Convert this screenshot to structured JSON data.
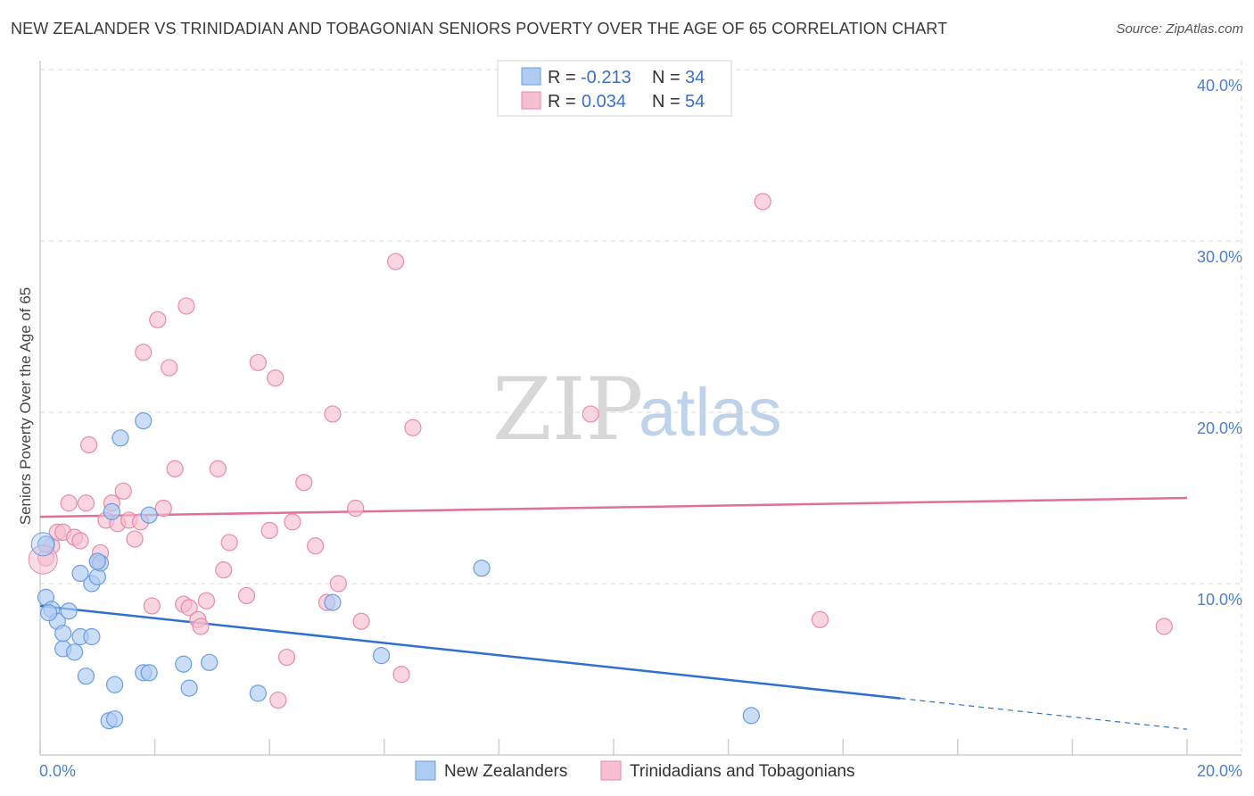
{
  "title": "NEW ZEALANDER VS TRINIDADIAN AND TOBAGONIAN SENIORS POVERTY OVER THE AGE OF 65 CORRELATION CHART",
  "source": "Source: ZipAtlas.com",
  "watermark": {
    "zip": "ZIP",
    "atlas": "atlas"
  },
  "colors": {
    "blue_fill": "#aecbf2",
    "blue_stroke": "#6a9de0",
    "blue_line": "#2f6fd1",
    "pink_fill": "#f6bfd0",
    "pink_stroke": "#e98aa9",
    "pink_line": "#e0709a",
    "grid": "#d8d8d8",
    "tick_text": "#4a7fd0"
  },
  "legend": {
    "rows": [
      {
        "r_label": "R =",
        "r_value": "-0.213",
        "n_label": "N =",
        "n_value": "34"
      },
      {
        "r_label": "R =",
        "r_value": "0.034",
        "n_label": "N =",
        "n_value": "54"
      }
    ]
  },
  "chart_data": {
    "type": "scatter",
    "title": "NEW ZEALANDER VS TRINIDADIAN AND TOBAGONIAN SENIORS POVERTY OVER THE AGE OF 65 CORRELATION CHART",
    "xlabel": "",
    "ylabel": "Seniors Poverty Over the Age of 65",
    "xlim": [
      0,
      20
    ],
    "ylim": [
      0,
      40
    ],
    "x_tick_labels": [
      {
        "v": 0,
        "label": "0.0%"
      },
      {
        "v": 20,
        "label": "20.0%"
      }
    ],
    "y_tick_labels": [
      {
        "v": 10,
        "label": "10.0%"
      },
      {
        "v": 20,
        "label": "20.0%"
      },
      {
        "v": 30,
        "label": "30.0%"
      },
      {
        "v": 40,
        "label": "40.0%"
      }
    ],
    "series": [
      {
        "name": "New Zealanders",
        "color": "blue",
        "points": [
          [
            0.1,
            12.3
          ],
          [
            0.1,
            9.2
          ],
          [
            0.2,
            8.5
          ],
          [
            0.3,
            7.8
          ],
          [
            0.4,
            6.2
          ],
          [
            0.5,
            8.4
          ],
          [
            0.4,
            7.1
          ],
          [
            0.6,
            6.0
          ],
          [
            0.7,
            6.9
          ],
          [
            0.8,
            4.6
          ],
          [
            0.9,
            10.0
          ],
          [
            0.7,
            10.6
          ],
          [
            0.9,
            6.9
          ],
          [
            1.0,
            10.4
          ],
          [
            1.05,
            11.2
          ],
          [
            1.25,
            14.2
          ],
          [
            1.3,
            4.1
          ],
          [
            1.2,
            2.0
          ],
          [
            1.3,
            2.1
          ],
          [
            1.4,
            18.5
          ],
          [
            1.8,
            4.8
          ],
          [
            1.9,
            4.8
          ],
          [
            1.8,
            19.5
          ],
          [
            1.9,
            14.0
          ],
          [
            2.5,
            5.3
          ],
          [
            2.6,
            3.9
          ],
          [
            2.95,
            5.4
          ],
          [
            3.8,
            3.6
          ],
          [
            5.1,
            8.9
          ],
          [
            5.95,
            5.8
          ],
          [
            7.7,
            10.9
          ],
          [
            12.4,
            2.3
          ],
          [
            0.15,
            8.3
          ],
          [
            1.0,
            11.3
          ]
        ]
      },
      {
        "name": "Trinidadians and Tobagonians",
        "color": "pink",
        "points": [
          [
            0.1,
            11.5
          ],
          [
            0.2,
            12.2
          ],
          [
            0.3,
            13.0
          ],
          [
            0.4,
            13.0
          ],
          [
            0.5,
            14.7
          ],
          [
            0.6,
            12.7
          ],
          [
            0.7,
            12.5
          ],
          [
            0.8,
            14.7
          ],
          [
            0.85,
            18.1
          ],
          [
            1.0,
            11.3
          ],
          [
            1.05,
            11.8
          ],
          [
            1.15,
            13.7
          ],
          [
            1.25,
            14.7
          ],
          [
            1.35,
            13.5
          ],
          [
            1.45,
            15.4
          ],
          [
            1.55,
            13.7
          ],
          [
            1.65,
            12.6
          ],
          [
            1.75,
            13.6
          ],
          [
            1.8,
            23.5
          ],
          [
            1.95,
            8.7
          ],
          [
            2.05,
            25.4
          ],
          [
            2.15,
            14.4
          ],
          [
            2.25,
            22.6
          ],
          [
            2.35,
            16.7
          ],
          [
            2.5,
            8.8
          ],
          [
            2.55,
            26.2
          ],
          [
            2.6,
            8.6
          ],
          [
            2.75,
            7.9
          ],
          [
            2.8,
            7.5
          ],
          [
            2.9,
            9.0
          ],
          [
            3.1,
            16.7
          ],
          [
            3.2,
            10.8
          ],
          [
            3.3,
            12.4
          ],
          [
            3.6,
            9.3
          ],
          [
            3.8,
            22.9
          ],
          [
            4.0,
            13.1
          ],
          [
            4.1,
            22.0
          ],
          [
            4.3,
            5.7
          ],
          [
            4.4,
            13.6
          ],
          [
            4.6,
            15.9
          ],
          [
            4.8,
            12.2
          ],
          [
            5.0,
            8.9
          ],
          [
            5.1,
            19.9
          ],
          [
            5.2,
            10.0
          ],
          [
            5.5,
            14.4
          ],
          [
            5.6,
            7.8
          ],
          [
            6.2,
            28.8
          ],
          [
            6.3,
            4.7
          ],
          [
            6.5,
            19.1
          ],
          [
            9.6,
            19.9
          ],
          [
            12.6,
            32.3
          ],
          [
            13.6,
            7.9
          ],
          [
            19.6,
            7.5
          ],
          [
            4.15,
            3.2
          ]
        ]
      }
    ],
    "trend_lines": [
      {
        "series": "New Zealanders",
        "x0": 0,
        "y0": 8.7,
        "x1": 15.0,
        "y1": 3.3,
        "dashed_to_x": 20.0,
        "dashed_to_y": 1.5
      },
      {
        "series": "Trinidadians and Tobagonians",
        "x0": 0,
        "y0": 13.9,
        "x1": 20.0,
        "y1": 15.0
      }
    ]
  },
  "bottom_legend": [
    {
      "label": "New Zealanders",
      "color": "blue"
    },
    {
      "label": "Trinidadians and Tobagonians",
      "color": "pink"
    }
  ]
}
